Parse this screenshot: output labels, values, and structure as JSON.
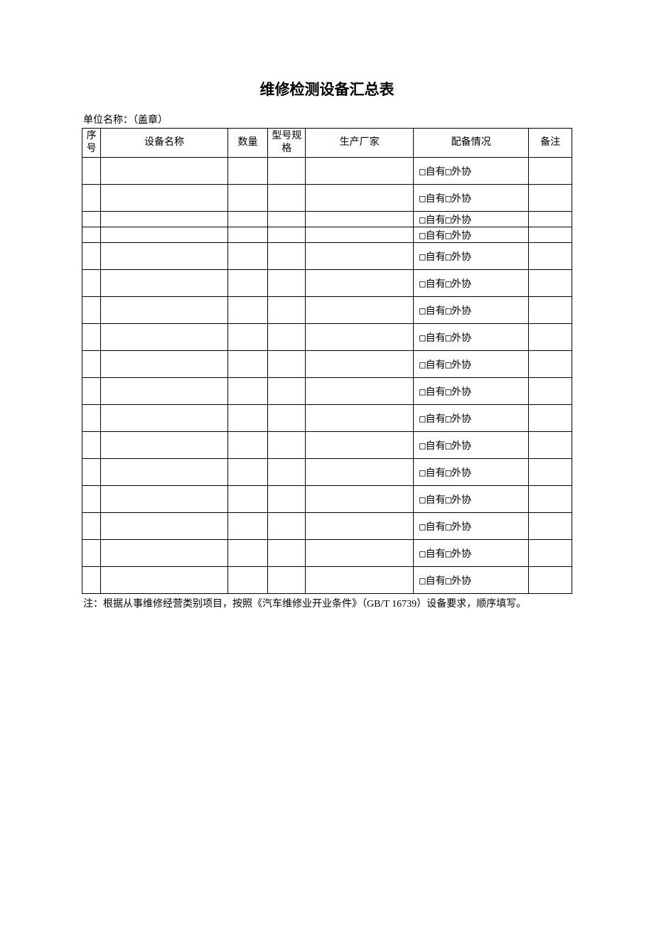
{
  "title": "维修检测设备汇总表",
  "unit_label": "单位名称：（盖章）",
  "columns": {
    "seq": "序号",
    "name": "设备名称",
    "qty": "数量",
    "spec": "型号规格",
    "mfr": "生产厂家",
    "status": "配备情况",
    "remark": "备注"
  },
  "checkbox_glyph": "□",
  "status_option1": "自有",
  "status_option2": "外协",
  "rows": [
    {
      "row_class": ""
    },
    {
      "row_class": ""
    },
    {
      "row_class": "short"
    },
    {
      "row_class": "short"
    },
    {
      "row_class": ""
    },
    {
      "row_class": ""
    },
    {
      "row_class": ""
    },
    {
      "row_class": ""
    },
    {
      "row_class": ""
    },
    {
      "row_class": ""
    },
    {
      "row_class": ""
    },
    {
      "row_class": ""
    },
    {
      "row_class": ""
    },
    {
      "row_class": ""
    },
    {
      "row_class": ""
    },
    {
      "row_class": ""
    },
    {
      "row_class": ""
    }
  ],
  "footer_note": "注：根据从事维修经营类别项目，按照《汽车维修业开业条件》（GB/T 16739）设备要求，顺序填写。",
  "colors": {
    "text": "#000000",
    "border": "#000000",
    "background": "#ffffff"
  },
  "typography": {
    "title_fontsize": 21,
    "body_fontsize": 14,
    "title_font": "SimHei",
    "body_font": "SimSun"
  }
}
